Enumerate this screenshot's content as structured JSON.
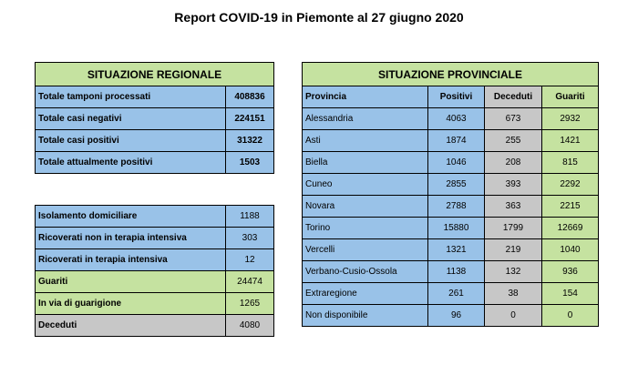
{
  "title": "Report COVID-19 in Piemonte al 27 giugno 2020",
  "regional": {
    "header": "SITUAZIONE REGIONALE",
    "summary_rows": [
      {
        "label": "Totale tamponi processati",
        "value": "408836"
      },
      {
        "label": "Totale casi negativi",
        "value": "224151"
      },
      {
        "label": "Totale casi positivi",
        "value": "31322"
      },
      {
        "label": "Totale attualmente positivi",
        "value": "1503"
      }
    ],
    "detail_rows": [
      {
        "label": "Isolamento domiciliare",
        "value": "1188"
      },
      {
        "label": "Ricoverati non in terapia intensiva",
        "value": "303"
      },
      {
        "label": "Ricoverati in terapia intensiva",
        "value": "12"
      },
      {
        "label": "Guariti",
        "value": "24474"
      },
      {
        "label": "In via di guarigione",
        "value": "1265"
      },
      {
        "label": "Deceduti",
        "value": "4080"
      }
    ]
  },
  "provincial": {
    "header": "SITUAZIONE PROVINCIALE",
    "columns": [
      "Provincia",
      "Positivi",
      "Deceduti",
      "Guariti"
    ],
    "rows": [
      {
        "provincia": "Alessandria",
        "positivi": "4063",
        "deceduti": "673",
        "guariti": "2932"
      },
      {
        "provincia": "Asti",
        "positivi": "1874",
        "deceduti": "255",
        "guariti": "1421"
      },
      {
        "provincia": "Biella",
        "positivi": "1046",
        "deceduti": "208",
        "guariti": "815"
      },
      {
        "provincia": "Cuneo",
        "positivi": "2855",
        "deceduti": "393",
        "guariti": "2292"
      },
      {
        "provincia": "Novara",
        "positivi": "2788",
        "deceduti": "363",
        "guariti": "2215"
      },
      {
        "provincia": "Torino",
        "positivi": "15880",
        "deceduti": "1799",
        "guariti": "12669"
      },
      {
        "provincia": "Vercelli",
        "positivi": "1321",
        "deceduti": "219",
        "guariti": "1040"
      },
      {
        "provincia": "Verbano-Cusio-Ossola",
        "positivi": "1138",
        "deceduti": "132",
        "guariti": "936"
      },
      {
        "provincia": "Extraregione",
        "positivi": "261",
        "deceduti": "38",
        "guariti": "154"
      },
      {
        "provincia": "Non disponibile",
        "positivi": "96",
        "deceduti": "0",
        "guariti": "0"
      }
    ]
  }
}
